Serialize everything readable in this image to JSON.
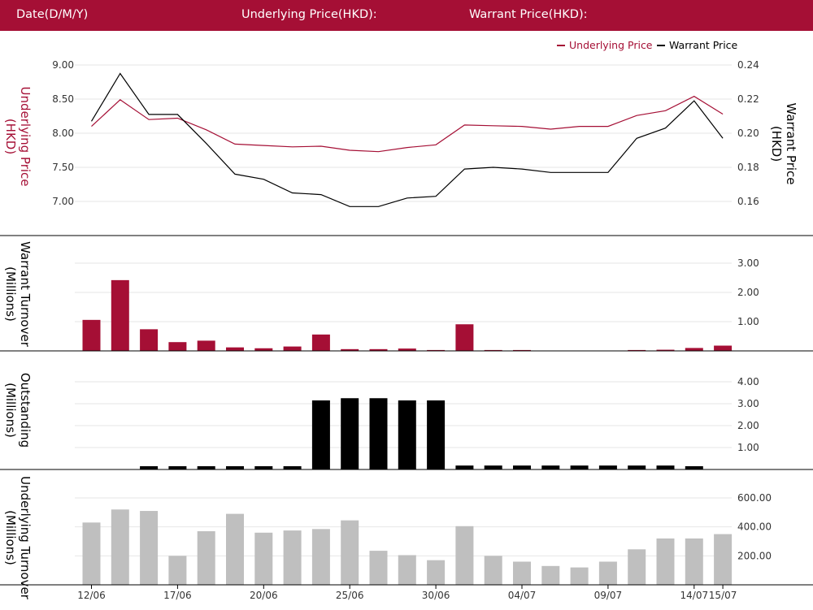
{
  "header": {
    "date_label": "Date(D/M/Y)",
    "underlying_label": "Underlying Price(HKD):",
    "warrant_label": "Warrant Price(HKD):"
  },
  "colors": {
    "crimson": "#a50f35",
    "black": "#000000",
    "gray": "#bfbfbf",
    "grid": "#e6e6e6"
  },
  "chart_data": [
    {
      "type": "line",
      "legend": [
        "Underlying Price",
        "Warrant Price"
      ],
      "legend_position": "top-right",
      "ylabel_left": "Underlying Price (HKD)",
      "ylabel_right": "Warrant  Price (HKD)",
      "y_left_ticks": [
        "9.00",
        "8.50",
        "8.00",
        "7.50",
        "7.00"
      ],
      "y_right_ticks": [
        "0.24",
        "0.22",
        "0.20",
        "0.18",
        "0.16"
      ],
      "ylim_left": [
        6.5,
        9.0
      ],
      "ylim_right": [
        0.14,
        0.24
      ],
      "series": [
        {
          "name": "Underlying Price",
          "color": "#a50f35",
          "axis": "left",
          "values": [
            8.1,
            8.49,
            8.2,
            8.22,
            8.05,
            7.84,
            7.82,
            7.8,
            7.81,
            7.75,
            7.73,
            7.79,
            7.83,
            8.12,
            8.11,
            8.1,
            8.06,
            8.1,
            8.1,
            8.26,
            8.33,
            8.54,
            8.28
          ]
        },
        {
          "name": "Warrant Price",
          "color": "#000000",
          "axis": "right",
          "values": [
            0.207,
            0.235,
            0.211,
            0.211,
            0.194,
            0.176,
            0.173,
            0.165,
            0.164,
            0.157,
            0.157,
            0.162,
            0.163,
            0.179,
            0.18,
            0.179,
            0.177,
            0.177,
            0.177,
            0.197,
            0.203,
            0.219,
            0.197
          ]
        }
      ],
      "grid": true
    },
    {
      "type": "bar",
      "ylabel": "Warrant  Turnover (Millions)",
      "y_ticks": [
        "3.00",
        "2.00",
        "1.00"
      ],
      "ylim": [
        0,
        3.3
      ],
      "color": "#a50f35",
      "values": [
        1.06,
        2.42,
        0.74,
        0.3,
        0.35,
        0.12,
        0.09,
        0.15,
        0.56,
        0.06,
        0.06,
        0.08,
        0.03,
        0.91,
        0.03,
        0.03,
        0,
        0,
        0,
        0.03,
        0.04,
        0.1,
        0.18
      ],
      "grid": true
    },
    {
      "type": "bar",
      "ylabel": "Outstanding (Millions)",
      "y_ticks": [
        "4.00",
        "3.00",
        "2.00",
        "1.00"
      ],
      "ylim": [
        0,
        4.3
      ],
      "color": "#000000",
      "values": [
        0,
        0,
        0.15,
        0.15,
        0.15,
        0.15,
        0.15,
        0.15,
        3.15,
        3.25,
        3.25,
        3.15,
        3.15,
        0.18,
        0.18,
        0.18,
        0.18,
        0.18,
        0.18,
        0.18,
        0.18,
        0.15,
        0
      ],
      "grid": true
    },
    {
      "type": "bar",
      "ylabel": "Underlying Turnover (Millions)",
      "y_ticks": [
        "600.00",
        "400.00",
        "200.00"
      ],
      "ylim": [
        0,
        660
      ],
      "color": "#bfbfbf",
      "values": [
        430,
        520,
        510,
        200,
        370,
        490,
        360,
        375,
        385,
        445,
        235,
        205,
        170,
        405,
        200,
        160,
        130,
        120,
        160,
        245,
        320,
        320,
        350
      ],
      "grid": true
    }
  ],
  "x_tick_labels": [
    {
      "index": 0,
      "label": "12/06"
    },
    {
      "index": 3,
      "label": "17/06"
    },
    {
      "index": 6,
      "label": "20/06"
    },
    {
      "index": 9,
      "label": "25/06"
    },
    {
      "index": 12,
      "label": "30/06"
    },
    {
      "index": 15,
      "label": "04/07"
    },
    {
      "index": 18,
      "label": "09/07"
    },
    {
      "index": 21,
      "label": "14/07"
    },
    {
      "index": 22,
      "label": "15/07"
    }
  ]
}
